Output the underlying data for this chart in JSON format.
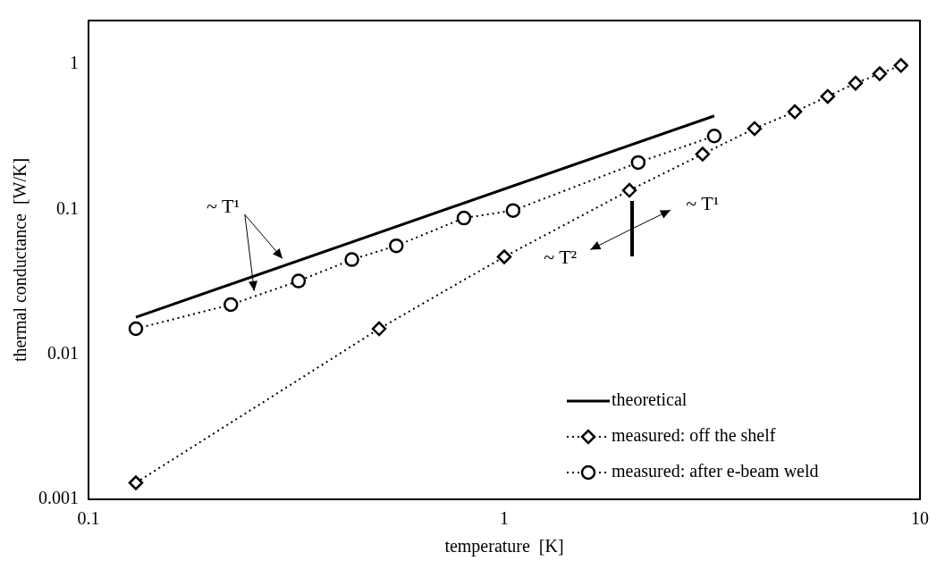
{
  "chart_data": {
    "type": "line",
    "xlabel": "temperature  [K]",
    "ylabel": "thermal conductance  [W/K]",
    "log": "xy",
    "xlim": [
      0.1,
      10
    ],
    "xticks": [
      0.1,
      1,
      10
    ],
    "ylim": [
      0.001,
      2
    ],
    "yticks": [
      0.001,
      0.01,
      0.1,
      1
    ],
    "grid": false,
    "legend": "bottom right",
    "series": [
      {
        "name": "theoretical",
        "color": "#000000",
        "marker": "none",
        "line_style": "solid",
        "x": [
          0.13,
          3.2
        ],
        "values": [
          0.018,
          0.44
        ]
      },
      {
        "name": "measured: off the shelf",
        "color": "#000000",
        "marker": "diamond",
        "line_style": "dotted",
        "x": [
          0.13,
          0.5,
          1,
          2,
          3,
          4,
          5,
          6,
          7,
          8,
          9
        ],
        "values": [
          0.0013,
          0.015,
          0.047,
          0.135,
          0.24,
          0.36,
          0.47,
          0.6,
          0.74,
          0.86,
          0.98
        ]
      },
      {
        "name": "measured: after e-beam weld",
        "color": "#000000",
        "marker": "circle",
        "line_style": "dotted",
        "x": [
          0.13,
          0.22,
          0.32,
          0.43,
          0.55,
          0.8,
          1.05,
          2.1,
          3.2
        ],
        "values": [
          0.015,
          0.022,
          0.032,
          0.045,
          0.056,
          0.087,
          0.098,
          0.21,
          0.32
        ]
      }
    ],
    "annotations": [
      "~ T¹",
      "~ T¹",
      "~ T²"
    ]
  }
}
